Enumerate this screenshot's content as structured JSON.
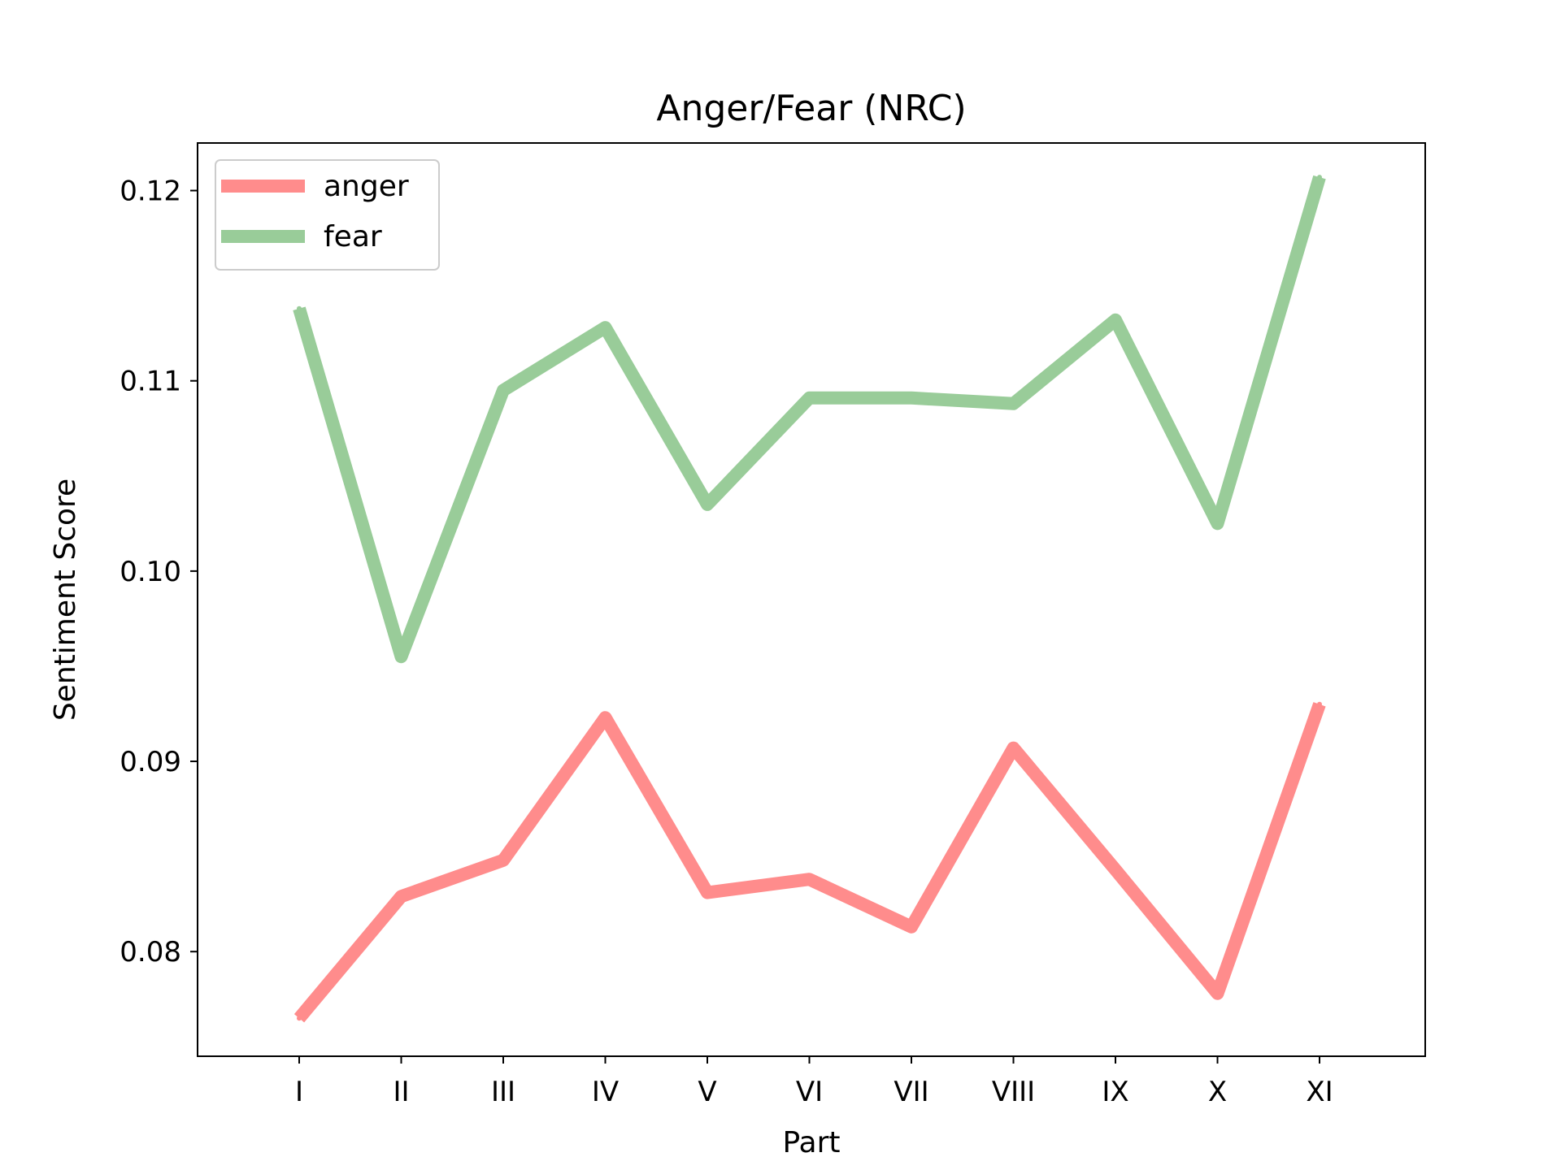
{
  "chart_data": {
    "type": "line",
    "title": "Anger/Fear (NRC)",
    "xlabel": "Part",
    "ylabel": "Sentiment Score",
    "categories": [
      "I",
      "II",
      "III",
      "IV",
      "V",
      "VI",
      "VII",
      "VIII",
      "IX",
      "X",
      "XI"
    ],
    "series": [
      {
        "name": "anger",
        "color": "#ff8c8c",
        "values": [
          0.0765,
          0.0829,
          0.0848,
          0.0923,
          0.0831,
          0.0838,
          0.0813,
          0.0907,
          0.0843,
          0.0778,
          0.093
        ]
      },
      {
        "name": "fear",
        "color": "#99cc99",
        "values": [
          0.1138,
          0.0955,
          0.1095,
          0.1128,
          0.1035,
          0.1091,
          0.1091,
          0.1088,
          0.1132,
          0.1025,
          0.1207
        ]
      }
    ],
    "yticks": [
      "0.08",
      "0.09",
      "0.10",
      "0.11",
      "0.12"
    ],
    "ylim": [
      0.0745,
      0.1225
    ],
    "grid": false,
    "legend_position": "top-left"
  }
}
